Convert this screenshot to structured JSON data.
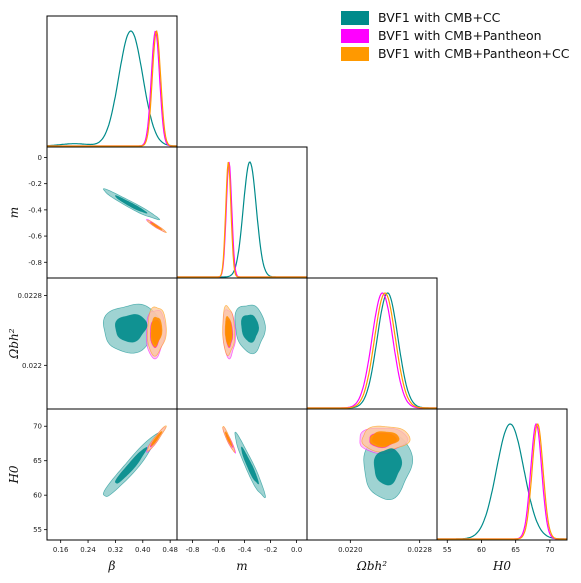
{
  "chart_data": {
    "type": "triangle-corner-plot",
    "title": "",
    "parameters": [
      {
        "label": "β",
        "range": [
          0.12,
          0.5
        ],
        "ticks": [
          "0.16",
          "0.24",
          "0.32",
          "0.40",
          "0.48"
        ],
        "tick_values": [
          0.16,
          0.24,
          0.32,
          0.4,
          0.48
        ]
      },
      {
        "label": "m",
        "range": [
          -0.92,
          0.08
        ],
        "ticks": [
          "-0.8",
          "-0.6",
          "-0.4",
          "-0.2",
          "0.0"
        ],
        "tick_values": [
          -0.8,
          -0.6,
          -0.4,
          -0.2,
          0.0
        ],
        "left_ticks": [
          "0",
          "-0.2",
          "-0.4",
          "-0.6",
          "-0.8"
        ],
        "left_tick_values": [
          0,
          -0.2,
          -0.4,
          -0.6,
          -0.8
        ]
      },
      {
        "label": "Ωbh²",
        "range": [
          0.0215,
          0.023
        ],
        "ticks": [
          "0.0220",
          "0.0228"
        ],
        "tick_values": [
          0.022,
          0.0228
        ],
        "left_ticks": [
          "0.0228",
          "0.022"
        ],
        "left_tick_values": [
          0.0228,
          0.022
        ]
      },
      {
        "label": "H0",
        "range": [
          53.5,
          72.5
        ],
        "ticks": [
          "55",
          "60",
          "65",
          "70"
        ],
        "tick_values": [
          55,
          60,
          65,
          70
        ],
        "left_ticks": [
          "70",
          "65",
          "60",
          "55"
        ],
        "left_tick_values": [
          70,
          65,
          60,
          55
        ]
      }
    ],
    "series": [
      {
        "name": "BVF1 with CMB+CC",
        "color": "#008b8b",
        "fill_inner": "#008b8b",
        "fill_outer": "#7fc4c3",
        "mean": {
          "beta": 0.365,
          "m": -0.36,
          "omegab": 0.02243,
          "H0": 64.2
        },
        "sigma": {
          "beta": 0.035,
          "m": 0.05,
          "omegab": 0.00012,
          "H0": 2.0
        }
      },
      {
        "name": "BVF1 with CMB+Pantheon",
        "color": "#ff00ff",
        "fill_inner": "#ff8c00",
        "fill_outer": "#f5b3e6",
        "mean": {
          "beta": 0.437,
          "m": -0.52,
          "omegab": 0.02237,
          "H0": 68.0
        },
        "sigma": {
          "beta": 0.012,
          "m": 0.021,
          "omegab": 0.00012,
          "H0": 0.8
        }
      },
      {
        "name": "BVF1 with CMB+Pantheon+CC",
        "color": "#ff9900",
        "fill_inner": "#ff8c00",
        "fill_outer": "#fcc89a",
        "mean": {
          "beta": 0.44,
          "m": -0.525,
          "omegab": 0.0224,
          "H0": 68.2
        },
        "sigma": {
          "beta": 0.012,
          "m": 0.02,
          "omegab": 0.00012,
          "H0": 0.8
        }
      }
    ],
    "legend_position": "top-right"
  }
}
